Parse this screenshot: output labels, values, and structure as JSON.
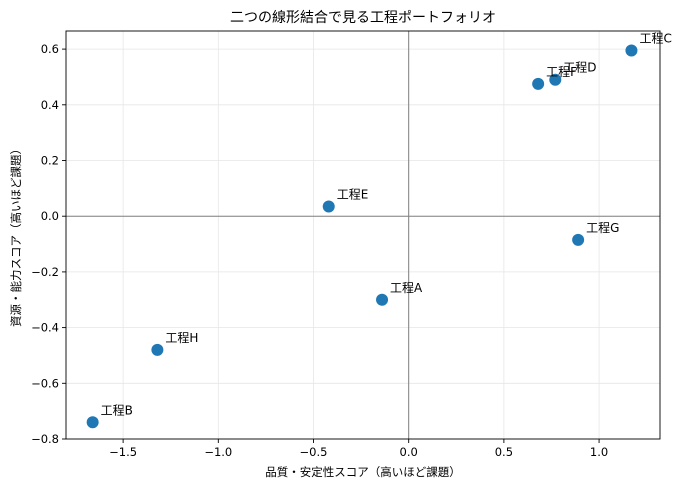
{
  "chart_data": {
    "type": "scatter",
    "title": "二つの線形結合で見る工程ポートフォリオ",
    "xlabel": "品質・安定性スコア（高いほど課題）",
    "ylabel": "資源・能力スコア（高いほど課題）",
    "xlim": [
      -1.8,
      1.32
    ],
    "ylim": [
      -0.8,
      0.665
    ],
    "xticks": [
      -1.5,
      -1.0,
      -0.5,
      0.0,
      0.5,
      1.0
    ],
    "xtick_labels": [
      "−1.5",
      "−1.0",
      "−0.5",
      "0.0",
      "0.5",
      "1.0"
    ],
    "yticks": [
      -0.8,
      -0.6,
      -0.4,
      -0.2,
      0.0,
      0.2,
      0.4,
      0.6
    ],
    "ytick_labels": [
      "−0.8",
      "−0.6",
      "−0.4",
      "−0.2",
      "0.0",
      "0.2",
      "0.4",
      "0.6"
    ],
    "grid": true,
    "reference_lines": {
      "x": 0,
      "y": 0
    },
    "point_color": "#1f77b4",
    "points": [
      {
        "label": "工程A",
        "x": -0.14,
        "y": -0.3
      },
      {
        "label": "工程B",
        "x": -1.66,
        "y": -0.74
      },
      {
        "label": "工程C",
        "x": 1.17,
        "y": 0.595
      },
      {
        "label": "工程D",
        "x": 0.77,
        "y": 0.49
      },
      {
        "label": "工程E",
        "x": -0.42,
        "y": 0.035
      },
      {
        "label": "工程F",
        "x": 0.68,
        "y": 0.475
      },
      {
        "label": "工程G",
        "x": 0.89,
        "y": -0.085
      },
      {
        "label": "工程H",
        "x": -1.32,
        "y": -0.48
      }
    ]
  }
}
